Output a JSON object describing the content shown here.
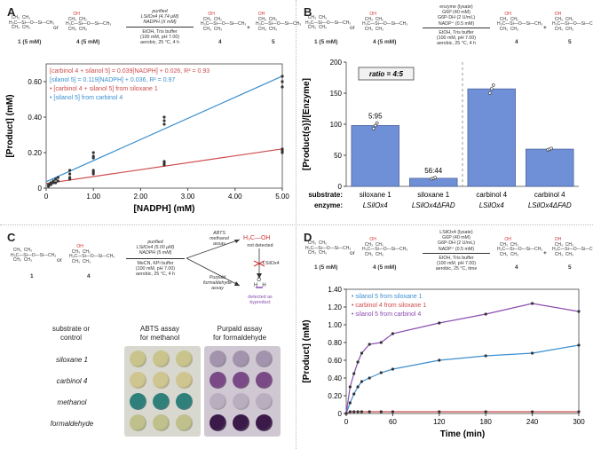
{
  "panels": {
    "A": {
      "letter": "A",
      "scheme": {
        "left_label": "1 (5 mM)",
        "or": "or",
        "mid_label": "4 (5 mM)",
        "cond_top": [
          "purified",
          "LSilOx4 (4.74 μM)",
          "NADPH (X mM)"
        ],
        "cond_bottom": [
          "EtOH, Tris buffer",
          "(100 mM, pH 7.00)",
          "aerobic, 25 °C, 4 h"
        ],
        "product1": "4",
        "plus": "+",
        "product2": "5"
      }
    },
    "B": {
      "letter": "B",
      "scheme": {
        "left_label": "1 (5 mM)",
        "or": "or",
        "mid_label": "4 (5 mM)",
        "cond_top": [
          "enzyme (lysate)",
          "G6P (40 mM)",
          "G6P-DH (2 U/mL)",
          "NADP⁺ (0.5 mM)"
        ],
        "cond_bottom": [
          "EtOH, Tris buffer",
          "(100 mM, pH 7.00)",
          "aerobic, 25 °C, 4 h"
        ],
        "product1": "4",
        "plus": "+",
        "product2": "5"
      }
    },
    "C": {
      "letter": "C",
      "scheme": {
        "left_label": "1",
        "or": "or",
        "mid_label": "4",
        "cond_top": [
          "purified",
          "LSilOx4 (5.00 μM)",
          "NADPH (5 mM)"
        ],
        "cond_bottom": [
          "MeCN, KPi buffer",
          "(100 mM, pH 7.00)",
          "aerobic, 25 °C, 4 h"
        ],
        "abts": [
          "ABTS",
          "methanol",
          "assay"
        ],
        "purpald": [
          "Purpald",
          "formaldehyde",
          "assay"
        ],
        "methanol_note": [
          "not detected"
        ],
        "methanol_formula": "H₃C—OH",
        "lsilox4": "LSilOx4",
        "formaldehyde_note": [
          "detected as",
          "byproduct"
        ]
      },
      "plate": {
        "header_left": [
          "substrate or",
          "control"
        ],
        "abts_header": [
          "ABTS assay",
          "for methanol"
        ],
        "purpald_header": [
          "Purpald assay",
          "for formaldehyde"
        ],
        "rows": [
          "siloxane 1",
          "carbinol 4",
          "methanol",
          "formaldehyde"
        ],
        "abts_colors": [
          "#c9c48c",
          "#cfc590",
          "#2f7f7a",
          "#bfc08c"
        ],
        "purpald_colors": [
          "#a393ad",
          "#7a4a86",
          "#b9aebf",
          "#3b1a4a"
        ]
      }
    },
    "D": {
      "letter": "D",
      "scheme": {
        "left_label": "1 (5 mM)",
        "or": "or",
        "mid_label": "4 (5 mM)",
        "cond_top": [
          "LSilOx4 (lysate)",
          "G6P (40 mM)",
          "G6P-DH (2 U/mL)",
          "NADP⁺ (0.5 mM)"
        ],
        "cond_bottom": [
          "EtOH, Tris buffer",
          "(100 mM, pH 7.00)",
          "aerobic, 25 °C, time"
        ],
        "product1": "4",
        "plus": "+",
        "product2": "5"
      }
    }
  },
  "chart_data": [
    {
      "id": "A",
      "type": "scatter",
      "xlabel": "[NADPH] (mM)",
      "ylabel": "[Product] (mM)",
      "xlim": [
        0,
        5
      ],
      "ylim": [
        0,
        0.7
      ],
      "xticks": [
        "0",
        "1.00",
        "2.00",
        "3.00",
        "4.00",
        "5.00"
      ],
      "xtick_values": [
        0,
        1,
        2,
        3,
        4,
        5
      ],
      "yticks": [
        "0",
        "0.20",
        "0.40",
        "0.60"
      ],
      "ytick_values": [
        0,
        0.2,
        0.4,
        0.6
      ],
      "legend_placement": "top-left",
      "fits": [
        {
          "text": "[carbinol 4 + silanol 5] = 0.039[NADPH] + 0.026, R² = 0.93",
          "color": "#d04a4a",
          "slope": 0.039,
          "intercept": 0.026
        },
        {
          "text": "[silanol 5] = 0.119[NADPH] + 0.036, R² = 0.97",
          "color": "#3b8fd0",
          "slope": 0.119,
          "intercept": 0.036
        }
      ],
      "series": [
        {
          "name": "[carbinol 4 + silanol 5] from siloxane 1",
          "color": "#d04a4a",
          "x": [
            0.05,
            0.1,
            0.1,
            0.15,
            0.2,
            0.25,
            0.5,
            0.5,
            1,
            1,
            1,
            2.5,
            2.5,
            2.5,
            5,
            5,
            5
          ],
          "y": [
            0.01,
            0.02,
            0.03,
            0.03,
            0.03,
            0.04,
            0.05,
            0.06,
            0.08,
            0.09,
            0.1,
            0.13,
            0.14,
            0.15,
            0.2,
            0.21,
            0.22
          ]
        },
        {
          "name": "[silanol 5] from carbinol 4",
          "color": "#3b8fd0",
          "x": [
            0.05,
            0.1,
            0.15,
            0.2,
            0.25,
            0.5,
            0.5,
            1,
            1,
            1,
            2.5,
            2.5,
            2.5,
            5,
            5,
            5
          ],
          "y": [
            0.02,
            0.03,
            0.04,
            0.05,
            0.06,
            0.08,
            0.1,
            0.17,
            0.18,
            0.2,
            0.36,
            0.38,
            0.4,
            0.57,
            0.6,
            0.63
          ]
        }
      ]
    },
    {
      "id": "B",
      "type": "bar",
      "ylabel": "[Product(s)]/[Enzyme]",
      "ylim": [
        0,
        200
      ],
      "yticks": [
        "0",
        "50",
        "100",
        "150",
        "200"
      ],
      "ytick_values": [
        0,
        50,
        100,
        150,
        200
      ],
      "ratio_box": "ratio = 4:5",
      "row_labels": [
        "substrate:",
        "enzyme:"
      ],
      "categories": [
        {
          "substrate": "siloxane 1",
          "enzyme": "LSilOx4",
          "value": 98,
          "label": "5:95",
          "points": [
            93,
            98,
            102
          ]
        },
        {
          "substrate": "siloxane 1",
          "enzyme": "LSilOx4ΔFAD",
          "value": 13,
          "label": "56:44",
          "points": [
            12,
            13,
            14
          ]
        },
        {
          "substrate": "carbinol 4",
          "enzyme": "LSilOx4",
          "value": 157,
          "label": "",
          "points": [
            150,
            157,
            163
          ]
        },
        {
          "substrate": "carbinol 4",
          "enzyme": "LSilOx4ΔFAD",
          "value": 60,
          "label": "",
          "points": [
            59,
            60,
            61
          ]
        }
      ],
      "bar_color": "#6f8fd6"
    },
    {
      "id": "D",
      "type": "line",
      "xlabel": "Time (min)",
      "ylabel": "[Product] (mM)",
      "xlim": [
        0,
        300
      ],
      "ylim": [
        0,
        1.4
      ],
      "xticks": [
        "0",
        "60",
        "120",
        "180",
        "240",
        "300"
      ],
      "xtick_values": [
        0,
        60,
        120,
        180,
        240,
        300
      ],
      "yticks": [
        "0",
        "0.20",
        "0.40",
        "0.60",
        "0.80",
        "1.00",
        "1.20",
        "1.40"
      ],
      "ytick_values": [
        0,
        0.2,
        0.4,
        0.6,
        0.8,
        1.0,
        1.2,
        1.4
      ],
      "legend_placement": "top-left",
      "series": [
        {
          "name": "silanol 5 from siloxane 1",
          "color": "#3b8fd0",
          "x": [
            0,
            5,
            10,
            15,
            20,
            30,
            45,
            60,
            120,
            180,
            240,
            300
          ],
          "y": [
            0,
            0.12,
            0.22,
            0.3,
            0.36,
            0.4,
            0.46,
            0.5,
            0.6,
            0.65,
            0.68,
            0.77
          ]
        },
        {
          "name": "carbinol 4 from siloxane 1",
          "color": "#d04a4a",
          "x": [
            0,
            5,
            10,
            15,
            20,
            30,
            45,
            60,
            120,
            180,
            240,
            300
          ],
          "y": [
            0,
            0.02,
            0.02,
            0.02,
            0.02,
            0.02,
            0.02,
            0.02,
            0.02,
            0.02,
            0.02,
            0.02
          ]
        },
        {
          "name": "silanol 5 from carbinol 4",
          "color": "#8a4cb0",
          "x": [
            0,
            5,
            10,
            15,
            20,
            30,
            45,
            60,
            120,
            180,
            240,
            300
          ],
          "y": [
            0,
            0.3,
            0.45,
            0.58,
            0.68,
            0.78,
            0.8,
            0.9,
            1.02,
            1.12,
            1.24,
            1.15
          ]
        }
      ]
    }
  ]
}
